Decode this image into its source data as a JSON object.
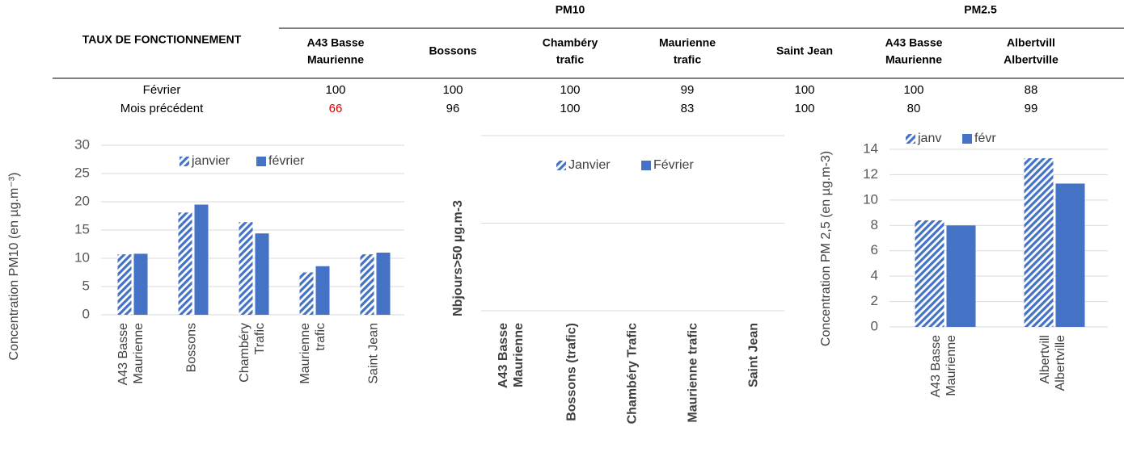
{
  "table": {
    "corner": "TAUX DE FONCTIONNEMENT",
    "groups": [
      {
        "label": "PM10",
        "span": 5
      },
      {
        "label": "PM2.5",
        "span": 2
      }
    ],
    "columns": [
      "A43  Basse Maurienne",
      "Bossons",
      "Chambéry trafic",
      "Maurienne trafic",
      "Saint Jean",
      "A43  Basse Maurienne",
      "Albertville"
    ],
    "rows": [
      {
        "label": "Février",
        "cells": [
          100,
          100,
          100,
          99,
          100,
          100,
          88
        ]
      },
      {
        "label": "Mois précédent",
        "cells": [
          66,
          96,
          100,
          83,
          100,
          80,
          99
        ]
      }
    ],
    "highlight_cells": [
      {
        "row": 1,
        "col": 0
      }
    ],
    "highlight_color": "#e00000"
  },
  "chart_data": [
    {
      "type": "bar",
      "ylabel": "Concentration PM10  (en µg.m⁻³)",
      "categories": [
        "A43 Basse Maurienne",
        "Bossons",
        "Chambéry Trafic",
        "Maurienne trafic",
        "Saint Jean"
      ],
      "series": [
        {
          "name": "janvier",
          "color": "#4472c4",
          "pattern": "hatch",
          "values": [
            10.7,
            18.1,
            16.4,
            7.5,
            10.7
          ]
        },
        {
          "name": "février",
          "color": "#4472c4",
          "pattern": "solid",
          "values": [
            10.8,
            19.5,
            14.4,
            8.6,
            11.0
          ]
        }
      ],
      "ylim": [
        0,
        30
      ],
      "yticks": [
        0,
        5,
        10,
        15,
        20,
        25,
        30
      ],
      "grid": true,
      "tick_labels": true
    },
    {
      "type": "bar",
      "ylabel": "Nbjours>50 µg.m-3",
      "categories": [
        "A43 Basse Maurienne",
        "Bossons (trafic)",
        "Chambéry Trafic",
        "Maurienne trafic",
        "Saint Jean"
      ],
      "series": [
        {
          "name": "Janvier",
          "color": "#4472c4",
          "pattern": "hatch",
          "values": [
            0,
            0,
            0,
            0,
            0
          ]
        },
        {
          "name": "Février",
          "color": "#4472c4",
          "pattern": "solid",
          "values": [
            0,
            0,
            0,
            0,
            0
          ]
        }
      ],
      "ylim": [
        0,
        2
      ],
      "yticks": [
        0,
        1,
        2
      ],
      "grid": true,
      "tick_labels": false
    },
    {
      "type": "bar",
      "ylabel": "Concentration PM 2,5  (en µg.m-3)",
      "categories": [
        "A43 Basse Maurienne",
        "Albertville"
      ],
      "series": [
        {
          "name": "janv",
          "color": "#4472c4",
          "pattern": "hatch",
          "values": [
            8.4,
            13.3
          ]
        },
        {
          "name": "févr",
          "color": "#4472c4",
          "pattern": "solid",
          "values": [
            8.0,
            11.3
          ]
        }
      ],
      "ylim": [
        0,
        14
      ],
      "yticks": [
        0,
        2,
        4,
        6,
        8,
        10,
        12,
        14
      ],
      "grid": true,
      "tick_labels": true
    }
  ]
}
